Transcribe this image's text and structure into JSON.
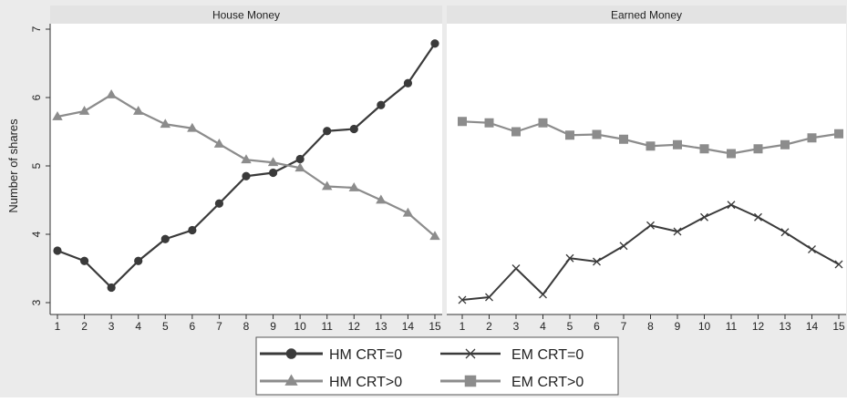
{
  "chart_data": {
    "type": "line",
    "ylabel": "Number of shares",
    "ylim": [
      3,
      7
    ],
    "yticks": [
      3,
      4,
      5,
      6,
      7
    ],
    "x": [
      1,
      2,
      3,
      4,
      5,
      6,
      7,
      8,
      9,
      10,
      11,
      12,
      13,
      14,
      15
    ],
    "xlim": [
      1,
      15
    ],
    "grid": false,
    "legend_position": "bottom",
    "colors": {
      "dark": "#3a3a3a",
      "mid": "#8c8c8c",
      "panel_bg": "#ffffff",
      "strip_bg": "#e3e3e3",
      "figure_bg": "#ebebeb"
    },
    "panels": [
      {
        "title": "House Money",
        "series": [
          {
            "name": "HM CRT=0",
            "marker": "circle",
            "color": "#3a3a3a",
            "values": [
              3.76,
              3.61,
              3.22,
              3.61,
              3.93,
              4.06,
              4.45,
              4.85,
              4.9,
              5.1,
              5.51,
              5.54,
              5.89,
              6.21,
              6.79
            ]
          },
          {
            "name": "HM CRT>0",
            "marker": "triangle",
            "color": "#8c8c8c",
            "values": [
              5.72,
              5.8,
              6.04,
              5.8,
              5.61,
              5.55,
              5.32,
              5.09,
              5.05,
              4.97,
              4.7,
              4.68,
              4.5,
              4.31,
              3.97
            ]
          }
        ]
      },
      {
        "title": "Earned Money",
        "series": [
          {
            "name": "EM CRT=0",
            "marker": "x",
            "color": "#3a3a3a",
            "values": [
              3.04,
              3.08,
              3.5,
              3.12,
              3.65,
              3.6,
              3.83,
              4.13,
              4.04,
              4.25,
              4.43,
              4.25,
              4.03,
              3.78,
              3.56
            ]
          },
          {
            "name": "EM CRT>0",
            "marker": "square",
            "color": "#8c8c8c",
            "values": [
              5.65,
              5.63,
              5.5,
              5.63,
              5.45,
              5.46,
              5.39,
              5.29,
              5.31,
              5.25,
              5.18,
              5.25,
              5.31,
              5.41,
              5.47
            ]
          }
        ]
      }
    ],
    "legend": [
      {
        "name": "HM CRT=0",
        "marker": "circle",
        "color": "#3a3a3a"
      },
      {
        "name": "EM CRT=0",
        "marker": "x",
        "color": "#3a3a3a"
      },
      {
        "name": "HM CRT>0",
        "marker": "triangle",
        "color": "#8c8c8c"
      },
      {
        "name": "EM CRT>0",
        "marker": "square",
        "color": "#8c8c8c"
      }
    ]
  }
}
